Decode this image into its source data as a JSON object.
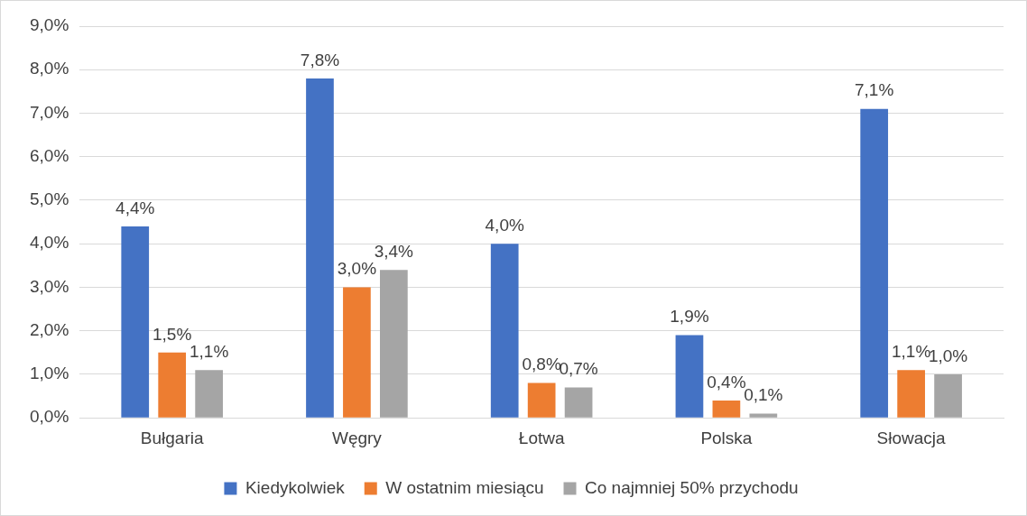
{
  "chart_data": {
    "type": "bar",
    "categories": [
      "Bułgaria",
      "Węgry",
      "Łotwa",
      "Polska",
      "Słowacja"
    ],
    "series": [
      {
        "name": "Kiedykolwiek",
        "color": "#4472c4",
        "values": [
          4.4,
          7.8,
          4.0,
          1.9,
          7.1
        ],
        "value_labels": [
          "4,4%",
          "7,8%",
          "4,0%",
          "1,9%",
          "7,1%"
        ]
      },
      {
        "name": "W ostatnim miesiącu",
        "color": "#ed7d31",
        "values": [
          1.5,
          3.0,
          0.8,
          0.4,
          1.1
        ],
        "value_labels": [
          "1,5%",
          "3,0%",
          "0,8%",
          "0,4%",
          "1,1%"
        ]
      },
      {
        "name": "Co najmniej 50% przychodu",
        "color": "#a5a5a5",
        "values": [
          1.1,
          3.4,
          0.7,
          0.1,
          1.0
        ],
        "value_labels": [
          "1,1%",
          "3,4%",
          "0,7%",
          "0,1%",
          "1,0%"
        ]
      }
    ],
    "ylim": [
      0,
      9
    ],
    "yticks": [
      {
        "value": 0,
        "label": "0,0%"
      },
      {
        "value": 1,
        "label": "1,0%"
      },
      {
        "value": 2,
        "label": "2,0%"
      },
      {
        "value": 3,
        "label": "3,0%"
      },
      {
        "value": 4,
        "label": "4,0%"
      },
      {
        "value": 5,
        "label": "5,0%"
      },
      {
        "value": 6,
        "label": "6,0%"
      },
      {
        "value": 7,
        "label": "7,0%"
      },
      {
        "value": 8,
        "label": "8,0%"
      },
      {
        "value": 9,
        "label": "9,0%"
      }
    ],
    "grid": "y",
    "legend": "bottom"
  }
}
